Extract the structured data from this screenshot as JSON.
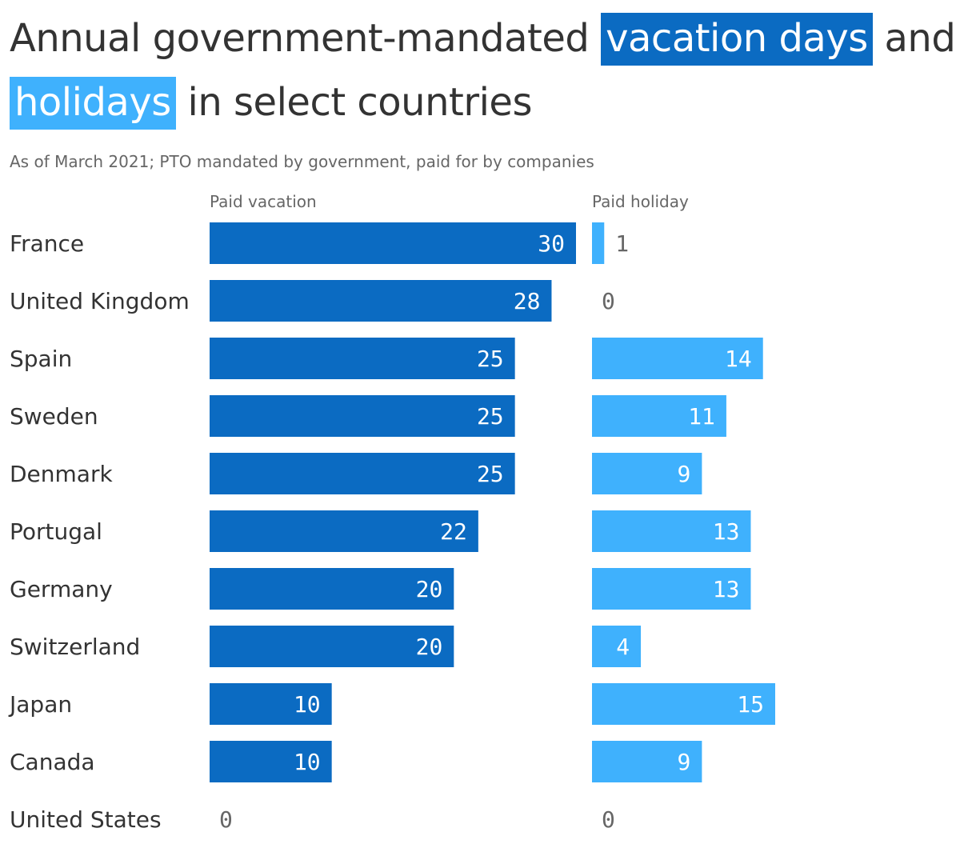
{
  "title": {
    "part1": "Annual government-mandated ",
    "highlight_vacation": "vacation days",
    "part2": " and ",
    "highlight_holidays": "holidays",
    "part3": " in select countries"
  },
  "subtitle": "As of March 2021; PTO mandated by government, paid for by companies",
  "colors": {
    "vacation": "#0b6bc2",
    "holiday": "#3fb1fd",
    "text": "#333333",
    "muted": "#666666"
  },
  "chart_data": {
    "type": "bar",
    "orientation": "horizontal",
    "categories": [
      "France",
      "United Kingdom",
      "Spain",
      "Sweden",
      "Denmark",
      "Portugal",
      "Germany",
      "Switzerland",
      "Japan",
      "Canada",
      "United States"
    ],
    "series": [
      {
        "name": "Paid vacation",
        "values": [
          30,
          28,
          25,
          25,
          25,
          22,
          20,
          20,
          10,
          10,
          0
        ]
      },
      {
        "name": "Paid holiday",
        "values": [
          1,
          0,
          14,
          11,
          9,
          13,
          13,
          4,
          15,
          9,
          0
        ]
      }
    ],
    "xlim": [
      0,
      30
    ],
    "grid": false,
    "legend": "column headers"
  }
}
